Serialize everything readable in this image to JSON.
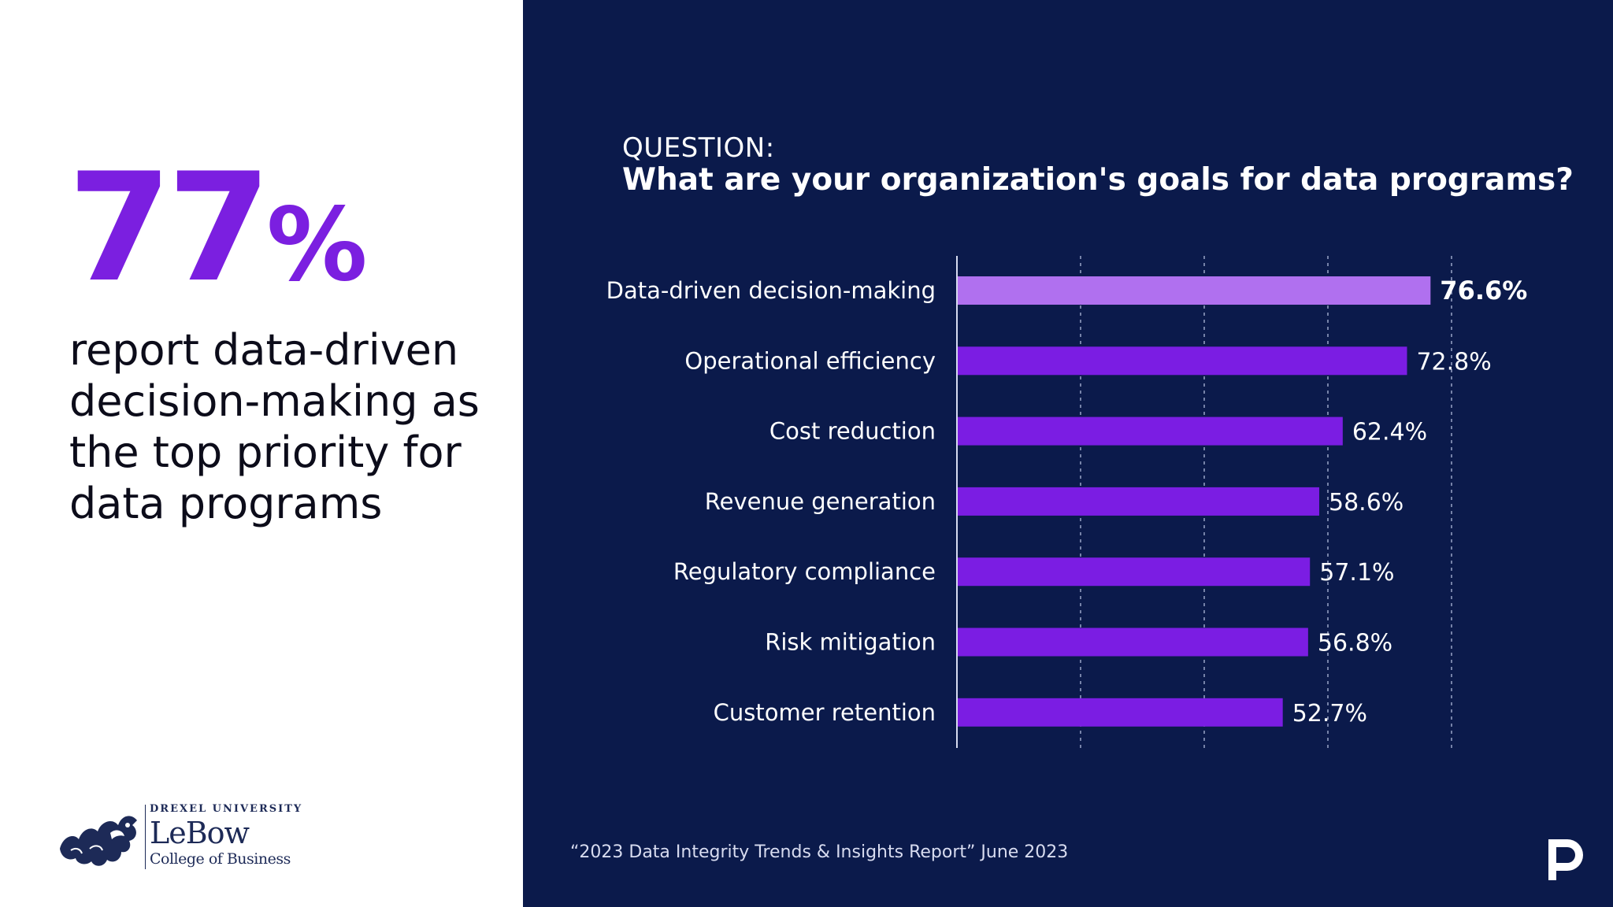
{
  "headline": {
    "stat_number": "77",
    "stat_percent": "%",
    "caption": "report data-driven decision-making as the top priority for data programs",
    "stat_color": "#7b1fe0"
  },
  "logo": {
    "university": "DREXEL UNIVERSITY",
    "school": "LeBow",
    "college": "College of Business",
    "icon": "dragon-logo-icon"
  },
  "question": {
    "label": "QUESTION:",
    "title": "What are your organization's goals for data programs?"
  },
  "chart_data": {
    "type": "bar",
    "orientation": "horizontal",
    "categories": [
      "Data-driven decision-making",
      "Operational efficiency",
      "Cost reduction",
      "Revenue generation",
      "Regulatory compliance",
      "Risk mitigation",
      "Customer retention"
    ],
    "values": [
      76.6,
      72.8,
      62.4,
      58.6,
      57.1,
      56.8,
      52.7
    ],
    "value_labels": [
      "76.6%",
      "72.8%",
      "62.4%",
      "58.6%",
      "57.1%",
      "56.8%",
      "52.7%"
    ],
    "highlight_index": 0,
    "xlim": [
      0,
      100
    ],
    "grid": "vertical dashed",
    "colors": {
      "bar": "#7b1de3",
      "highlight_bar": "#b070ef",
      "background": "#0b1a4b",
      "text": "#ffffff"
    }
  },
  "footer": {
    "source": "“2023 Data Integrity Trends & Insights Report”  June 2023",
    "brand_icon": "precisely-p-logo-icon"
  }
}
